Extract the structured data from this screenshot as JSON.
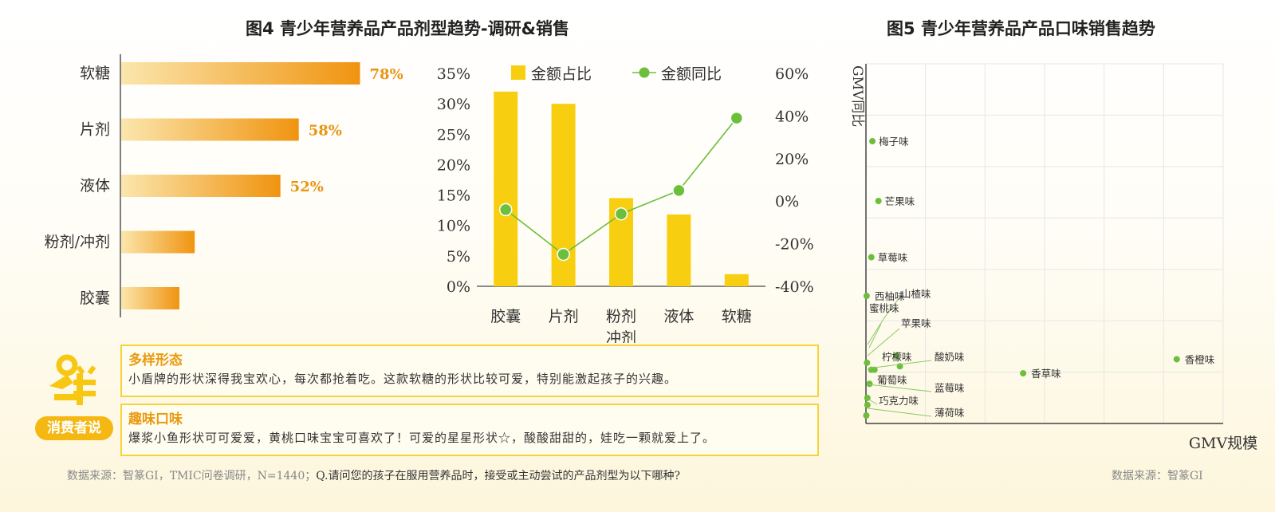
{
  "fig4": {
    "title": "图4 青少年营养品产品剂型趋势-调研&销售",
    "survey_bars": {
      "categories": [
        "软糖",
        "片剂",
        "液体",
        "粉剂/冲剂",
        "胶囊"
      ],
      "values": [
        78,
        58,
        52,
        24,
        19
      ],
      "labels": [
        "78%",
        "58%",
        "52%",
        "",
        ""
      ]
    },
    "combo": {
      "legend": {
        "bar": "金额占比",
        "line": "金额同比"
      },
      "categories": [
        "胶囊",
        "片剂",
        "粉剂\n冲剂",
        "液体",
        "软糖"
      ],
      "left_ticks": [
        "35%",
        "30%",
        "25%",
        "20%",
        "15%",
        "10%",
        "5%",
        "0%"
      ],
      "right_ticks": [
        "60%",
        "40%",
        "20%",
        "0%",
        "-20%",
        "-40%"
      ]
    }
  },
  "fig5": {
    "title": "图5 青少年营养品产品口味销售趋势",
    "ylabel": "GMV同比",
    "xlabel": "GMV规模",
    "source": "数据来源：智篆GI"
  },
  "chart_data": [
    {
      "type": "bar",
      "orientation": "horizontal",
      "categories": [
        "软糖",
        "片剂",
        "液体",
        "粉剂/冲剂",
        "胶囊"
      ],
      "values": [
        78,
        58,
        52,
        24,
        19
      ],
      "unit": "%",
      "xlim": [
        0,
        100
      ]
    },
    {
      "type": "bar",
      "categories": [
        "胶囊",
        "片剂",
        "粉剂冲剂",
        "液体",
        "软糖"
      ],
      "series": [
        {
          "name": "金额占比",
          "type": "bar",
          "axis": "left",
          "values": [
            32,
            30,
            14.5,
            11.8,
            2
          ]
        },
        {
          "name": "金额同比",
          "type": "line",
          "axis": "right",
          "values": [
            -4,
            -25,
            -6,
            5,
            39
          ]
        }
      ],
      "ylim_left": [
        0,
        35
      ],
      "ylim_right": [
        -40,
        60
      ],
      "legend": "top"
    },
    {
      "type": "scatter",
      "title": "图5 青少年营养品产品口味销售趋势",
      "xlabel": "GMV规模",
      "ylabel": "GMV同比",
      "points": [
        {
          "name": "梅子味",
          "x": 1.8,
          "y": 78
        },
        {
          "name": "芒果味",
          "x": 3.5,
          "y": 61
        },
        {
          "name": "草莓味",
          "x": 1.5,
          "y": 45
        },
        {
          "name": "西柚味",
          "x": 0.2,
          "y": 34
        },
        {
          "name": "山楂味",
          "x": 8.5,
          "y": 17
        },
        {
          "name": "蜜桃味",
          "x": 0.3,
          "y": 15
        },
        {
          "name": "苹果味",
          "x": 9.5,
          "y": 14
        },
        {
          "name": "柠檬味",
          "x": 1.5,
          "y": 13
        },
        {
          "name": "酸奶味",
          "x": 2.4,
          "y": 13
        },
        {
          "name": "葡萄味",
          "x": 1.0,
          "y": 9
        },
        {
          "name": "蓝莓味",
          "x": 0.4,
          "y": 5
        },
        {
          "name": "巧克力味",
          "x": 0.4,
          "y": 3
        },
        {
          "name": "薄荷味",
          "x": 0.1,
          "y": 0
        },
        {
          "name": "香草味",
          "x": 44,
          "y": 12
        },
        {
          "name": "香橙味",
          "x": 87,
          "y": 16
        }
      ],
      "grid": true
    }
  ],
  "consumer": {
    "badge": "消费者说",
    "quotes": [
      {
        "head": "多样形态",
        "body": "小盾牌的形状深得我宝欢心，每次都抢着吃。这款软糖的形状比较可爱，特别能激起孩子的兴趣。"
      },
      {
        "head": "趣味口味",
        "body": "爆浆小鱼形状可可爱爱，黄桃口味宝宝可喜欢了！可爱的星星形状☆，酸酸甜甜的，娃吃一颗就爱上了。"
      }
    ]
  },
  "footer": {
    "source": "数据来源：智篆GI，TMIC问卷调研，N=1440；",
    "question": "Q.请问您的孩子在服用营养品时，接受或主动尝试的产品剂型为以下哪种?"
  },
  "colors": {
    "bar_gradient_start": "#fbe3a6",
    "bar_gradient_end": "#f09410",
    "yellow_bar": "#f8cf10",
    "green": "#6bbf3a",
    "orange_text": "#e89410"
  }
}
